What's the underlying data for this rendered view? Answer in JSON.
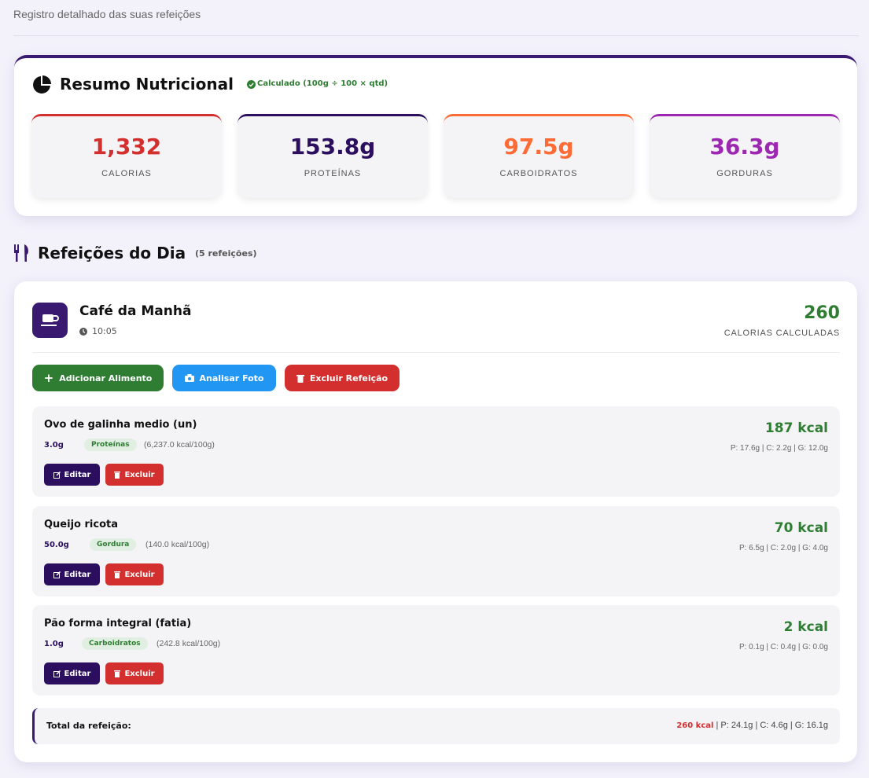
{
  "header": {
    "subtitle": "Registro detalhado das suas refeições"
  },
  "summary": {
    "title": "Resumo Nutricional",
    "badge": "Calculado (100g ÷ 100 × qtd)",
    "stats": [
      {
        "value": "1,332",
        "label": "CALORIAS"
      },
      {
        "value": "153.8g",
        "label": "PROTEÍNAS"
      },
      {
        "value": "97.5g",
        "label": "CARBOIDRATOS"
      },
      {
        "value": "36.3g",
        "label": "GORDURAS"
      }
    ]
  },
  "meals_section": {
    "title": "Refeições do Dia",
    "count": "(5 refeições)"
  },
  "meal": {
    "name": "Café da Manhã",
    "time": "10:05",
    "calories": "260",
    "calories_label": "CALORIAS CALCULADAS",
    "buttons": {
      "add": "Adicionar Alimento",
      "photo": "Analisar Foto",
      "delete": "Excluir Refeição"
    },
    "item_actions": {
      "edit": "Editar",
      "delete": "Excluir"
    },
    "items": [
      {
        "name": "Ovo de galinha medio (un)",
        "qty": "3.0g",
        "tag": "Proteínas",
        "per100": "(6,237.0 kcal/100g)",
        "kcal": "187 kcal",
        "macros": "P: 17.6g | C: 2.2g | G: 12.0g"
      },
      {
        "name": "Queijo ricota",
        "qty": "50.0g",
        "tag": "Gordura",
        "per100": "(140.0 kcal/100g)",
        "kcal": "70 kcal",
        "macros": "P: 6.5g | C: 2.0g | G: 4.0g"
      },
      {
        "name": "Pão forma integral (fatia)",
        "qty": "1.0g",
        "tag": "Carboidratos",
        "per100": "(242.8 kcal/100g)",
        "kcal": "2 kcal",
        "macros": "P: 0.1g | C: 0.4g | G: 0.0g"
      }
    ],
    "total": {
      "label": "Total da refeição:",
      "kcal": "260 kcal",
      "macros": "| P: 24.1g | C: 4.6g | G: 16.1g"
    }
  }
}
